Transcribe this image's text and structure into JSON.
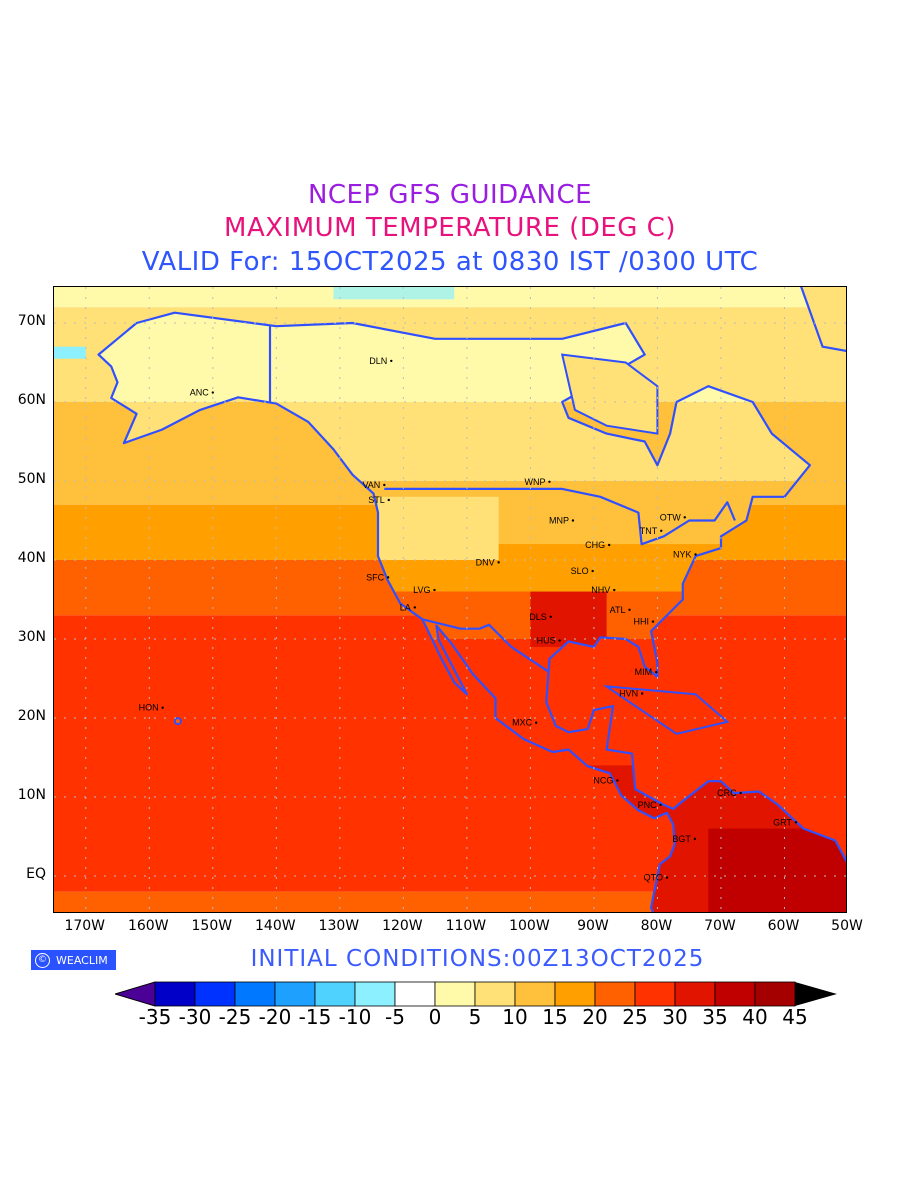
{
  "title": {
    "line1": "NCEP GFS GUIDANCE",
    "line2": "MAXIMUM TEMPERATURE (DEG C)",
    "line3": "VALID For: 15OCT2025 at 0830 IST /0300 UTC"
  },
  "axes": {
    "lat_labels": [
      "70N",
      "60N",
      "50N",
      "40N",
      "30N",
      "20N",
      "10N",
      "EQ"
    ],
    "lon_labels": [
      "170W",
      "160W",
      "150W",
      "140W",
      "130W",
      "120W",
      "110W",
      "100W",
      "90W",
      "80W",
      "70W",
      "60W",
      "50W"
    ]
  },
  "cities": [
    {
      "name": "ANC",
      "lon": -150,
      "lat": 61.2
    },
    {
      "name": "DLN",
      "lon": -121.9,
      "lat": 65.2
    },
    {
      "name": "VAN",
      "lon": -123,
      "lat": 49.5
    },
    {
      "name": "STL",
      "lon": -122.3,
      "lat": 47.6
    },
    {
      "name": "WNP",
      "lon": -97,
      "lat": 49.9
    },
    {
      "name": "MNP",
      "lon": -93.3,
      "lat": 45
    },
    {
      "name": "OTW",
      "lon": -75.7,
      "lat": 45.4
    },
    {
      "name": "TNT",
      "lon": -79.4,
      "lat": 43.7
    },
    {
      "name": "CHG",
      "lon": -87.6,
      "lat": 41.9
    },
    {
      "name": "NYK",
      "lon": -74,
      "lat": 40.7
    },
    {
      "name": "DNV",
      "lon": -105,
      "lat": 39.7
    },
    {
      "name": "SLO",
      "lon": -90.2,
      "lat": 38.6
    },
    {
      "name": "SFC",
      "lon": -122.4,
      "lat": 37.8
    },
    {
      "name": "LVG",
      "lon": -115.1,
      "lat": 36.2
    },
    {
      "name": "NHV",
      "lon": -86.8,
      "lat": 36.2
    },
    {
      "name": "LA",
      "lon": -118.2,
      "lat": 34
    },
    {
      "name": "ATL",
      "lon": -84.4,
      "lat": 33.7
    },
    {
      "name": "HHI",
      "lon": -80.7,
      "lat": 32.2
    },
    {
      "name": "DLS",
      "lon": -96.8,
      "lat": 32.8
    },
    {
      "name": "HUS",
      "lon": -95.4,
      "lat": 29.8
    },
    {
      "name": "MIM",
      "lon": -80.2,
      "lat": 25.8
    },
    {
      "name": "HVN",
      "lon": -82.4,
      "lat": 23.1
    },
    {
      "name": "MXC",
      "lon": -99.1,
      "lat": 19.4
    },
    {
      "name": "HON",
      "lon": -157.9,
      "lat": 21.3
    },
    {
      "name": "NCG",
      "lon": -86.3,
      "lat": 12.1
    },
    {
      "name": "PNC",
      "lon": -79.5,
      "lat": 9
    },
    {
      "name": "CRC",
      "lon": -66.9,
      "lat": 10.5
    },
    {
      "name": "GRT",
      "lon": -58.2,
      "lat": 6.8
    },
    {
      "name": "BGT",
      "lon": -74.1,
      "lat": 4.7
    },
    {
      "name": "QTO",
      "lon": -78.5,
      "lat": -0.2
    }
  ],
  "logo": {
    "symbol": "©",
    "text": "WEACLIM"
  },
  "initial_conditions": "INITIAL  CONDITIONS:00Z13OCT2025",
  "colorbar": {
    "labels": [
      "-35",
      "-30",
      "-25",
      "-20",
      "-15",
      "-10",
      "-5",
      "0",
      "5",
      "10",
      "15",
      "20",
      "25",
      "30",
      "35",
      "40",
      "45"
    ],
    "under_color": "#4b0096",
    "over_color": "#000000",
    "colors": [
      "#0000c8",
      "#0032ff",
      "#0078ff",
      "#1ea0ff",
      "#50d2ff",
      "#8cf0ff",
      "#ffffff",
      "#fffaaa",
      "#ffe178",
      "#ffc03c",
      "#ffa000",
      "#ff6000",
      "#ff3200",
      "#e11400",
      "#c00000",
      "#a50000"
    ]
  }
}
